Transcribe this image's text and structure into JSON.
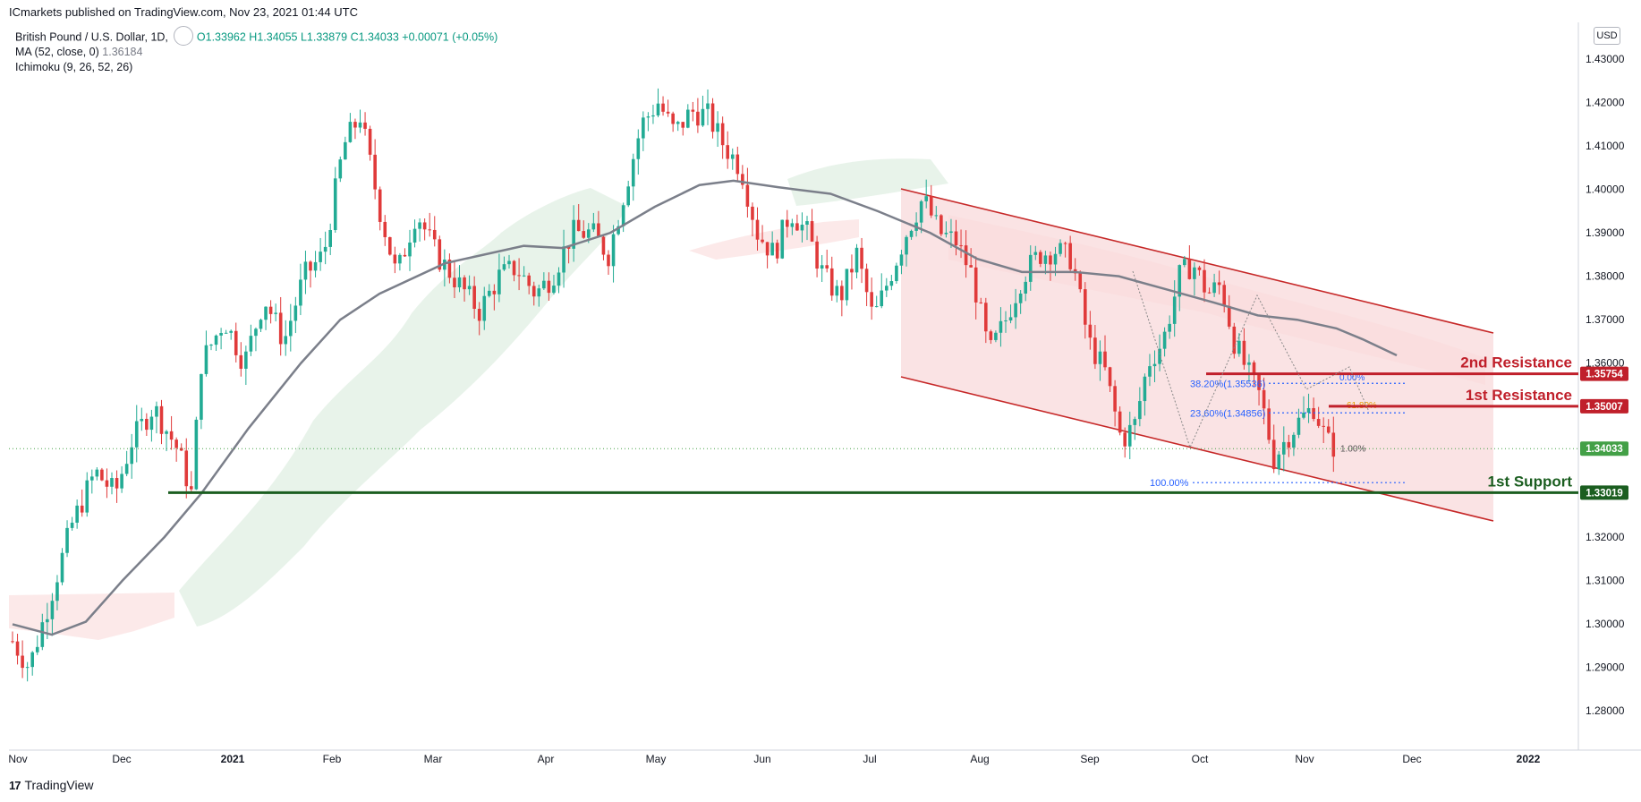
{
  "header": {
    "published": "ICmarkets published on TradingView.com, Nov 23, 2021 01:44 UTC"
  },
  "legend": {
    "symbol": "British Pound / U.S. Dollar, 1D,",
    "ohlc": "O1.33962  H1.34055  L1.33879  C1.34033  +0.00071 (+0.05%)",
    "ma_label": "MA (52, close, 0)",
    "ma_value": "1.36184",
    "ichimoku_label": "Ichimoku (9, 26, 52, 26)"
  },
  "currency_button": "USD",
  "footer": {
    "brand": "TradingView",
    "logo": "17"
  },
  "chart_data": {
    "type": "candlestick",
    "symbol": "GBPUSD",
    "timeframe": "1D",
    "ylim": [
      1.2708,
      1.4358
    ],
    "y_ticks": [
      "1.43000",
      "1.42000",
      "1.41000",
      "1.40000",
      "1.39000",
      "1.38000",
      "1.37000",
      "1.36000",
      "1.35000",
      "1.34000",
      "1.33000",
      "1.32000",
      "1.31000",
      "1.30000",
      "1.29000",
      "1.28000"
    ],
    "x_ticks": [
      "Nov",
      "Dec",
      "2021",
      "Feb",
      "Mar",
      "Apr",
      "May",
      "Jun",
      "Jul",
      "Aug",
      "Sep",
      "Oct",
      "Nov",
      "Dec",
      "2022"
    ],
    "x_tick_bold": [
      false,
      false,
      true,
      false,
      false,
      false,
      false,
      false,
      false,
      false,
      false,
      false,
      false,
      false,
      true
    ],
    "colors": {
      "up": "#22ab94",
      "down": "#e03a3a",
      "ma": "#7b7f8a",
      "channel": "#cc1f2b",
      "support": "#1b5e20",
      "fib": "#2962ff"
    },
    "moving_average": [
      [
        0,
        1.2999
      ],
      [
        15,
        1.2975
      ],
      [
        28,
        1.3005
      ],
      [
        42,
        1.31
      ],
      [
        58,
        1.32
      ],
      [
        72,
        1.33
      ],
      [
        90,
        1.345
      ],
      [
        110,
        1.36
      ],
      [
        125,
        1.37
      ],
      [
        140,
        1.376
      ],
      [
        165,
        1.383
      ],
      [
        180,
        1.385
      ],
      [
        195,
        1.387
      ],
      [
        210,
        1.3865
      ],
      [
        228,
        1.39
      ],
      [
        245,
        1.396
      ],
      [
        262,
        1.401
      ],
      [
        275,
        1.402
      ],
      [
        292,
        1.4005
      ],
      [
        312,
        1.399
      ],
      [
        330,
        1.395
      ],
      [
        350,
        1.39
      ],
      [
        368,
        1.384
      ],
      [
        385,
        1.381
      ],
      [
        405,
        1.381
      ],
      [
        422,
        1.38
      ],
      [
        440,
        1.377
      ],
      [
        458,
        1.374
      ],
      [
        475,
        1.371
      ],
      [
        490,
        1.37
      ],
      [
        505,
        1.368
      ],
      [
        515,
        1.3655
      ],
      [
        528,
        1.3618
      ]
    ],
    "ohlc_path": [
      [
        0,
        1.296
      ],
      [
        10,
        1.29
      ],
      [
        22,
        1.305
      ],
      [
        36,
        1.323
      ],
      [
        50,
        1.335
      ],
      [
        62,
        1.33
      ],
      [
        72,
        1.342
      ],
      [
        85,
        1.35
      ],
      [
        100,
        1.34
      ],
      [
        108,
        1.33
      ],
      [
        114,
        1.36
      ],
      [
        128,
        1.37
      ],
      [
        140,
        1.36
      ],
      [
        152,
        1.375
      ],
      [
        164,
        1.365
      ],
      [
        176,
        1.38
      ],
      [
        188,
        1.385
      ],
      [
        200,
        1.41
      ],
      [
        210,
        1.417
      ],
      [
        222,
        1.395
      ],
      [
        232,
        1.38
      ],
      [
        244,
        1.395
      ],
      [
        256,
        1.385
      ],
      [
        270,
        1.378
      ],
      [
        282,
        1.372
      ],
      [
        294,
        1.38
      ],
      [
        304,
        1.382
      ],
      [
        316,
        1.376
      ],
      [
        326,
        1.38
      ],
      [
        338,
        1.39
      ],
      [
        350,
        1.39
      ],
      [
        360,
        1.385
      ],
      [
        370,
        1.4
      ],
      [
        380,
        1.415
      ],
      [
        390,
        1.42
      ],
      [
        400,
        1.413
      ],
      [
        410,
        1.418
      ],
      [
        420,
        1.417
      ],
      [
        430,
        1.41
      ],
      [
        440,
        1.405
      ],
      [
        450,
        1.39
      ],
      [
        460,
        1.385
      ],
      [
        470,
        1.395
      ],
      [
        480,
        1.39
      ],
      [
        490,
        1.38
      ],
      [
        500,
        1.375
      ],
      [
        510,
        1.385
      ],
      [
        520,
        1.37
      ],
      [
        530,
        1.38
      ],
      [
        540,
        1.39
      ],
      [
        550,
        1.398
      ],
      [
        560,
        1.39
      ],
      [
        570,
        1.388
      ],
      [
        580,
        1.38
      ],
      [
        590,
        1.362
      ],
      [
        600,
        1.37
      ],
      [
        610,
        1.38
      ],
      [
        620,
        1.385
      ],
      [
        630,
        1.386
      ],
      [
        640,
        1.384
      ],
      [
        650,
        1.365
      ],
      [
        660,
        1.358
      ],
      [
        670,
        1.342
      ],
      [
        678,
        1.346
      ],
      [
        686,
        1.36
      ],
      [
        695,
        1.365
      ],
      [
        705,
        1.38
      ],
      [
        713,
        1.383
      ],
      [
        722,
        1.376
      ],
      [
        730,
        1.378
      ],
      [
        738,
        1.365
      ],
      [
        746,
        1.358
      ],
      [
        754,
        1.352
      ],
      [
        762,
        1.338
      ],
      [
        770,
        1.343
      ],
      [
        778,
        1.347
      ],
      [
        786,
        1.35
      ],
      [
        794,
        1.342
      ],
      [
        800,
        1.3403
      ]
    ],
    "fib_levels": [
      {
        "label": "38.20%(1.35536)",
        "value": 1.35536
      },
      {
        "label": "23.60%(1.34856)",
        "value": 1.34856
      },
      {
        "label": "100.00%",
        "value": 1.3325
      }
    ],
    "small_fib_labels": [
      "0.00%",
      "61.80%",
      "1.00%"
    ],
    "levels": [
      {
        "name": "2nd Resistance",
        "value": 1.35754,
        "price_label": "1.35754",
        "color": "#c0202b"
      },
      {
        "name": "1st Resistance",
        "value": 1.35007,
        "price_label": "1.35007",
        "color": "#c0202b"
      },
      {
        "name": "1st Support",
        "value": 1.33019,
        "price_label": "1.33019",
        "color": "#1b5e20"
      }
    ],
    "last_price": {
      "value": 1.34033,
      "label": "1.34033",
      "color": "#43a047"
    }
  }
}
